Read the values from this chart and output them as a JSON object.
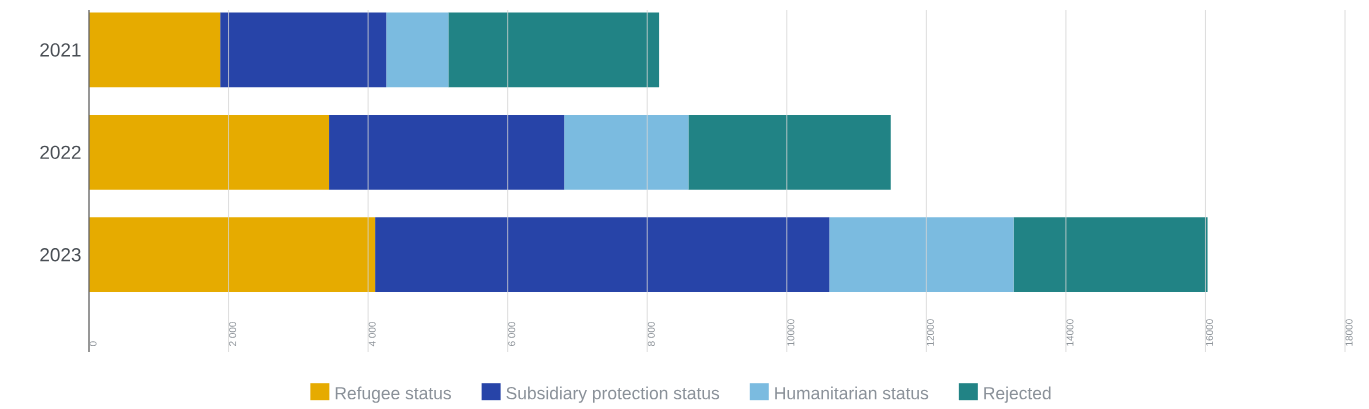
{
  "chart_data": {
    "type": "bar",
    "orientation": "horizontal",
    "stacked": true,
    "categories": [
      "2021",
      "2022",
      "2023"
    ],
    "series": [
      {
        "name": "Refugee status",
        "color": "#e6ab00",
        "values": [
          1880,
          3440,
          4100
        ]
      },
      {
        "name": "Subsidiary protection status",
        "color": "#2744a8",
        "values": [
          2380,
          3370,
          6510
        ]
      },
      {
        "name": "Humanitarian status",
        "color": "#7bbbe0",
        "values": [
          890,
          1780,
          2640
        ]
      },
      {
        "name": "Rejected",
        "color": "#218385",
        "values": [
          3020,
          2900,
          2780
        ]
      }
    ],
    "xlim": [
      0,
      18000
    ],
    "xticks": [
      0,
      {
        "value": 2000,
        "label": "2 000"
      },
      {
        "value": 4000,
        "label": "4 000"
      },
      {
        "value": 6000,
        "label": "6 000"
      },
      {
        "value": 8000,
        "label": "8 000"
      },
      10000,
      12000,
      14000,
      16000,
      18000
    ],
    "grid": "x",
    "legend": "bottom"
  }
}
